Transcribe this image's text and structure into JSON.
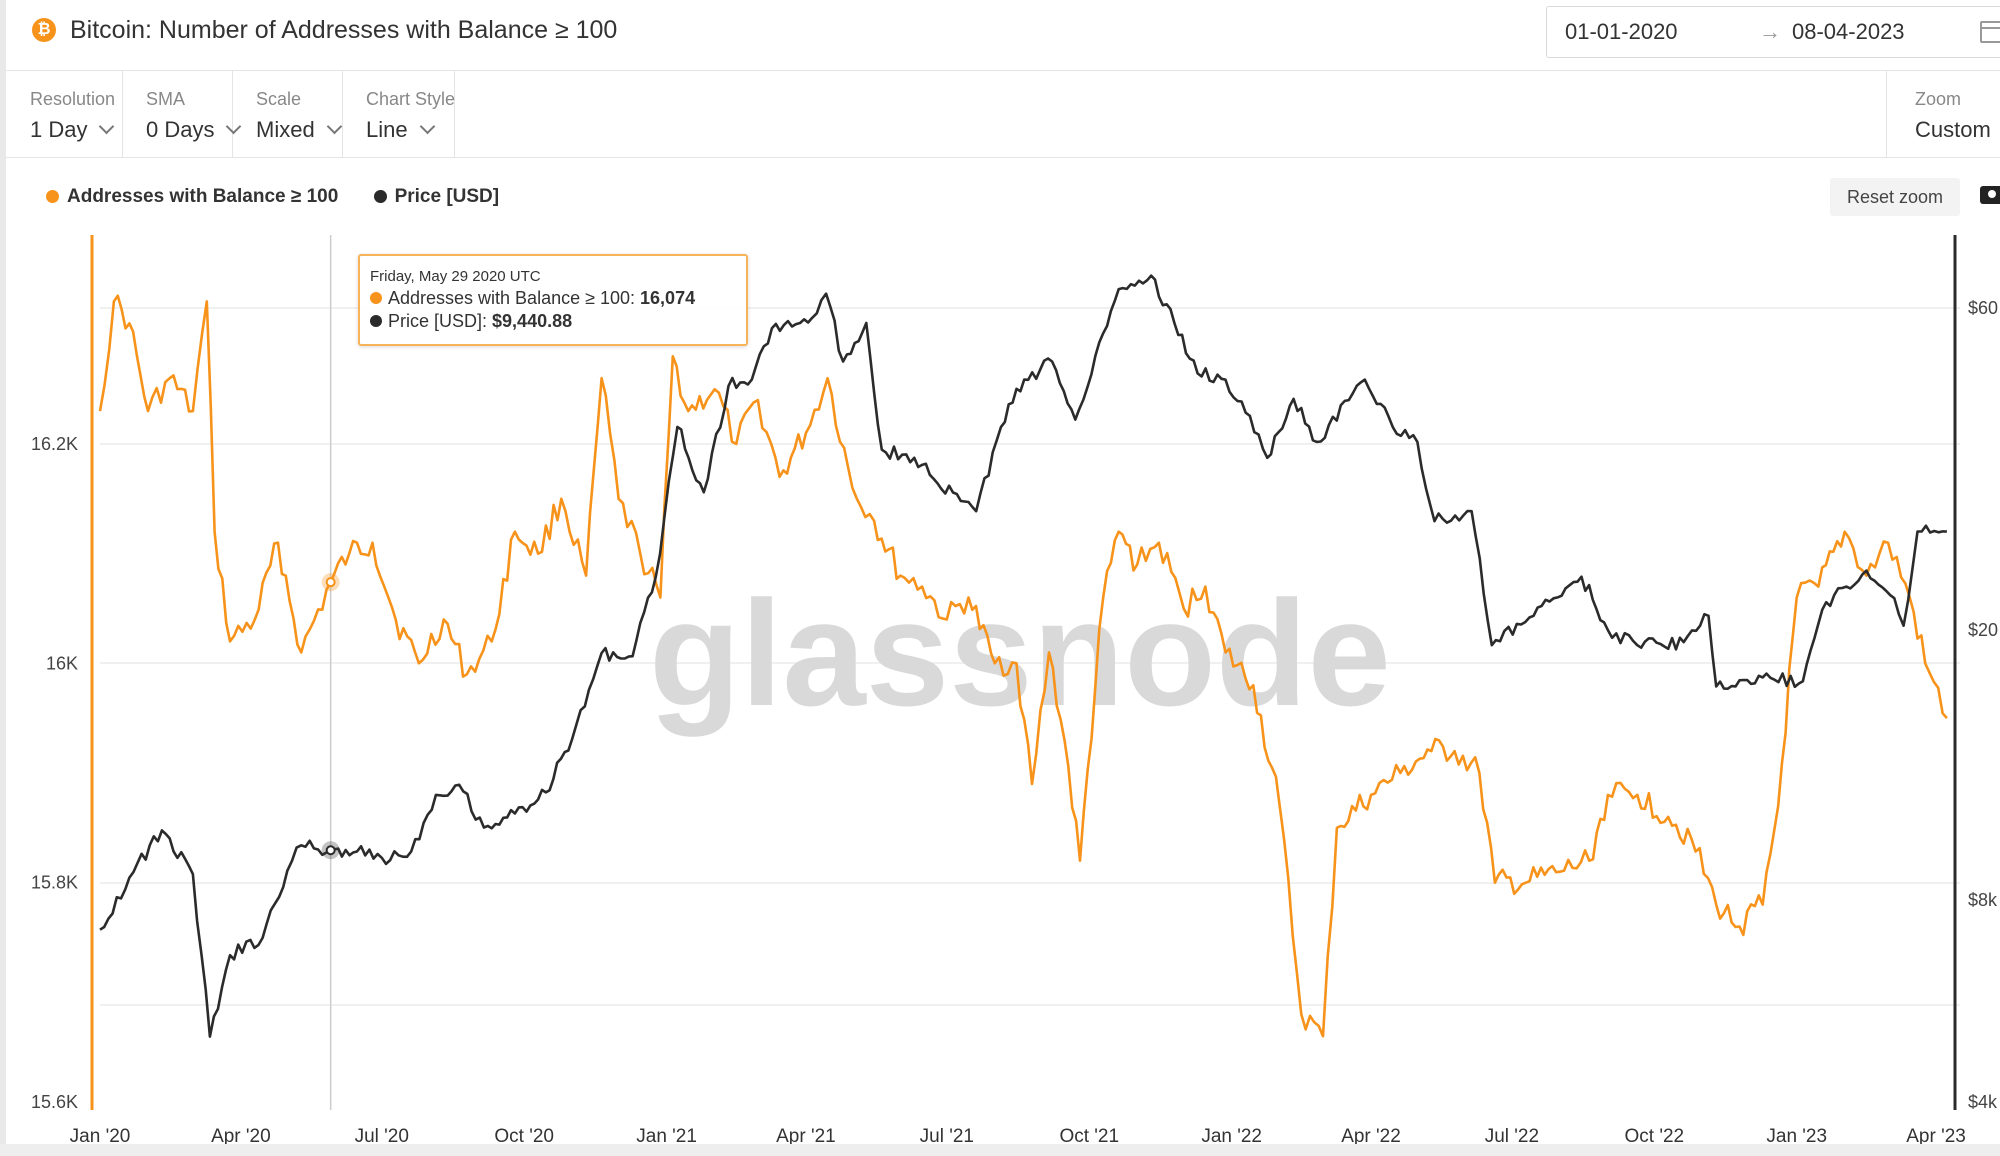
{
  "header": {
    "title": "Bitcoin: Number of Addresses with Balance ≥ 100",
    "icon": "bitcoin-icon",
    "date_start": "01-01-2020",
    "date_arrow": "→",
    "date_end": "08-04-2023"
  },
  "controls": {
    "resolution": {
      "label": "Resolution",
      "value": "1 Day"
    },
    "sma": {
      "label": "SMA",
      "value": "0 Days"
    },
    "scale": {
      "label": "Scale",
      "value": "Mixed"
    },
    "chart_style": {
      "label": "Chart Style",
      "value": "Line"
    },
    "zoom": {
      "label": "Zoom",
      "value": "Custom"
    }
  },
  "legend": {
    "series1": "Addresses with Balance ≥ 100",
    "series2": "Price [USD]"
  },
  "reset_zoom": "Reset zoom",
  "watermark": "glassnode",
  "tooltip": {
    "date": "Friday, May 29 2020 UTC",
    "row1_label": "Addresses with Balance ≥ 100: ",
    "row1_value": "16,074",
    "row2_label": "Price [USD]: ",
    "row2_value": "$9,440.88"
  },
  "colors": {
    "addresses": "#f7931a",
    "price": "#2b2b2b",
    "grid": "#ececec"
  },
  "chart_data": {
    "type": "line",
    "x_labels": [
      "Jan '20",
      "Apr '20",
      "Jul '20",
      "Oct '20",
      "Jan '21",
      "Apr '21",
      "Jul '21",
      "Oct '21",
      "Jan '22",
      "Apr '22",
      "Jul '22",
      "Oct '22",
      "Jan '23",
      "Apr '23"
    ],
    "y_left": {
      "ticks": [
        "16.2K",
        "16K",
        "15.8K",
        "15.6K"
      ],
      "tick_values": [
        16200,
        16000,
        15800,
        15600
      ],
      "range": [
        15600,
        16200
      ],
      "scale": "linear"
    },
    "y_right": {
      "ticks": [
        "$60",
        "$20",
        "$8k",
        "$4k"
      ],
      "scale": "log"
    },
    "series": [
      {
        "name": "Addresses with Balance ≥ 100",
        "axis": "left",
        "points": [
          [
            "2020-01-01",
            16230
          ],
          [
            "2020-01-10",
            16330
          ],
          [
            "2020-01-20",
            16310
          ],
          [
            "2020-02-01",
            16230
          ],
          [
            "2020-02-15",
            16260
          ],
          [
            "2020-03-01",
            16230
          ],
          [
            "2020-03-10",
            16330
          ],
          [
            "2020-03-15",
            16120
          ],
          [
            "2020-03-25",
            16020
          ],
          [
            "2020-04-10",
            16040
          ],
          [
            "2020-04-25",
            16110
          ],
          [
            "2020-05-10",
            16010
          ],
          [
            "2020-05-29",
            16074
          ],
          [
            "2020-06-10",
            16100
          ],
          [
            "2020-06-25",
            16110
          ],
          [
            "2020-07-10",
            16040
          ],
          [
            "2020-07-25",
            16000
          ],
          [
            "2020-08-10",
            16040
          ],
          [
            "2020-08-25",
            15990
          ],
          [
            "2020-09-10",
            16020
          ],
          [
            "2020-09-25",
            16120
          ],
          [
            "2020-10-10",
            16100
          ],
          [
            "2020-10-25",
            16150
          ],
          [
            "2020-11-10",
            16080
          ],
          [
            "2020-11-20",
            16260
          ],
          [
            "2020-12-01",
            16150
          ],
          [
            "2020-12-15",
            16100
          ],
          [
            "2020-12-28",
            16060
          ],
          [
            "2021-01-05",
            16280
          ],
          [
            "2021-01-15",
            16230
          ],
          [
            "2021-02-01",
            16250
          ],
          [
            "2021-02-15",
            16200
          ],
          [
            "2021-03-01",
            16240
          ],
          [
            "2021-03-15",
            16170
          ],
          [
            "2021-04-01",
            16210
          ],
          [
            "2021-04-15",
            16260
          ],
          [
            "2021-05-01",
            16160
          ],
          [
            "2021-05-15",
            16130
          ],
          [
            "2021-06-01",
            16080
          ],
          [
            "2021-06-15",
            16070
          ],
          [
            "2021-07-01",
            16040
          ],
          [
            "2021-07-15",
            16060
          ],
          [
            "2021-08-01",
            16000
          ],
          [
            "2021-08-15",
            16000
          ],
          [
            "2021-08-25",
            15890
          ],
          [
            "2021-09-05",
            16010
          ],
          [
            "2021-09-15",
            15930
          ],
          [
            "2021-09-25",
            15820
          ],
          [
            "2021-10-10",
            16060
          ],
          [
            "2021-10-20",
            16120
          ],
          [
            "2021-11-01",
            16090
          ],
          [
            "2021-11-15",
            16110
          ],
          [
            "2021-12-01",
            16050
          ],
          [
            "2021-12-15",
            16070
          ],
          [
            "2021-12-28",
            16010
          ],
          [
            "2022-01-15",
            15980
          ],
          [
            "2022-02-01",
            15870
          ],
          [
            "2022-02-15",
            15680
          ],
          [
            "2022-03-01",
            15660
          ],
          [
            "2022-03-10",
            15850
          ],
          [
            "2022-04-01",
            15880
          ],
          [
            "2022-04-20",
            15900
          ],
          [
            "2022-05-10",
            15920
          ],
          [
            "2022-05-25",
            15920
          ],
          [
            "2022-06-10",
            15900
          ],
          [
            "2022-06-20",
            15800
          ],
          [
            "2022-07-10",
            15800
          ],
          [
            "2022-08-01",
            15810
          ],
          [
            "2022-08-20",
            15820
          ],
          [
            "2022-09-01",
            15880
          ],
          [
            "2022-09-20",
            15880
          ],
          [
            "2022-10-10",
            15860
          ],
          [
            "2022-10-25",
            15840
          ],
          [
            "2022-11-10",
            15780
          ],
          [
            "2022-11-25",
            15760
          ],
          [
            "2022-12-10",
            15780
          ],
          [
            "2022-12-20",
            15870
          ],
          [
            "2023-01-01",
            16060
          ],
          [
            "2023-01-15",
            16070
          ],
          [
            "2023-02-01",
            16120
          ],
          [
            "2023-02-15",
            16080
          ],
          [
            "2023-03-01",
            16110
          ],
          [
            "2023-03-15",
            16060
          ],
          [
            "2023-03-25",
            16000
          ],
          [
            "2023-04-08",
            15950
          ]
        ]
      },
      {
        "name": "Price [USD]",
        "axis": "right",
        "points": [
          [
            "2020-01-01",
            7200
          ],
          [
            "2020-01-20",
            8600
          ],
          [
            "2020-02-10",
            10100
          ],
          [
            "2020-03-01",
            8700
          ],
          [
            "2020-03-12",
            5000
          ],
          [
            "2020-03-25",
            6600
          ],
          [
            "2020-04-15",
            7000
          ],
          [
            "2020-05-01",
            8800
          ],
          [
            "2020-05-10",
            9600
          ],
          [
            "2020-05-29",
            9440
          ],
          [
            "2020-06-15",
            9400
          ],
          [
            "2020-07-01",
            9200
          ],
          [
            "2020-07-20",
            9400
          ],
          [
            "2020-08-05",
            11400
          ],
          [
            "2020-08-20",
            11800
          ],
          [
            "2020-09-05",
            10200
          ],
          [
            "2020-09-25",
            10700
          ],
          [
            "2020-10-15",
            11500
          ],
          [
            "2020-11-01",
            13800
          ],
          [
            "2020-11-20",
            18500
          ],
          [
            "2020-12-10",
            18300
          ],
          [
            "2020-12-25",
            24000
          ],
          [
            "2021-01-08",
            40000
          ],
          [
            "2021-01-25",
            32000
          ],
          [
            "2021-02-10",
            46000
          ],
          [
            "2021-02-25",
            47000
          ],
          [
            "2021-03-10",
            56000
          ],
          [
            "2021-04-05",
            58000
          ],
          [
            "2021-04-14",
            63000
          ],
          [
            "2021-04-25",
            50000
          ],
          [
            "2021-05-10",
            57000
          ],
          [
            "2021-05-20",
            37000
          ],
          [
            "2021-06-10",
            36000
          ],
          [
            "2021-06-25",
            33000
          ],
          [
            "2021-07-20",
            30000
          ],
          [
            "2021-08-05",
            40000
          ],
          [
            "2021-08-20",
            47000
          ],
          [
            "2021-09-07",
            50000
          ],
          [
            "2021-09-22",
            41000
          ],
          [
            "2021-10-05",
            51000
          ],
          [
            "2021-10-20",
            64000
          ],
          [
            "2021-11-10",
            67000
          ],
          [
            "2021-11-25",
            57000
          ],
          [
            "2021-12-10",
            48000
          ],
          [
            "2021-12-28",
            47000
          ],
          [
            "2022-01-10",
            42000
          ],
          [
            "2022-01-24",
            36000
          ],
          [
            "2022-02-10",
            44000
          ],
          [
            "2022-02-25",
            38000
          ],
          [
            "2022-03-28",
            47000
          ],
          [
            "2022-04-15",
            40000
          ],
          [
            "2022-05-01",
            38000
          ],
          [
            "2022-05-12",
            29000
          ],
          [
            "2022-06-05",
            30000
          ],
          [
            "2022-06-18",
            19000
          ],
          [
            "2022-07-15",
            21000
          ],
          [
            "2022-08-15",
            24000
          ],
          [
            "2022-09-01",
            20000
          ],
          [
            "2022-09-20",
            19000
          ],
          [
            "2022-10-20",
            19200
          ],
          [
            "2022-11-05",
            21000
          ],
          [
            "2022-11-10",
            16500
          ],
          [
            "2022-12-15",
            17000
          ],
          [
            "2023-01-05",
            16800
          ],
          [
            "2023-01-20",
            22000
          ],
          [
            "2023-02-15",
            24500
          ],
          [
            "2023-03-05",
            22300
          ],
          [
            "2023-03-11",
            20300
          ],
          [
            "2023-03-20",
            28000
          ],
          [
            "2023-04-08",
            28000
          ]
        ]
      }
    ],
    "x_range": [
      "2020-01-01",
      "2023-04-10"
    ],
    "grid": true,
    "legend_position": "top-left",
    "crosshair_date": "2020-05-29"
  }
}
